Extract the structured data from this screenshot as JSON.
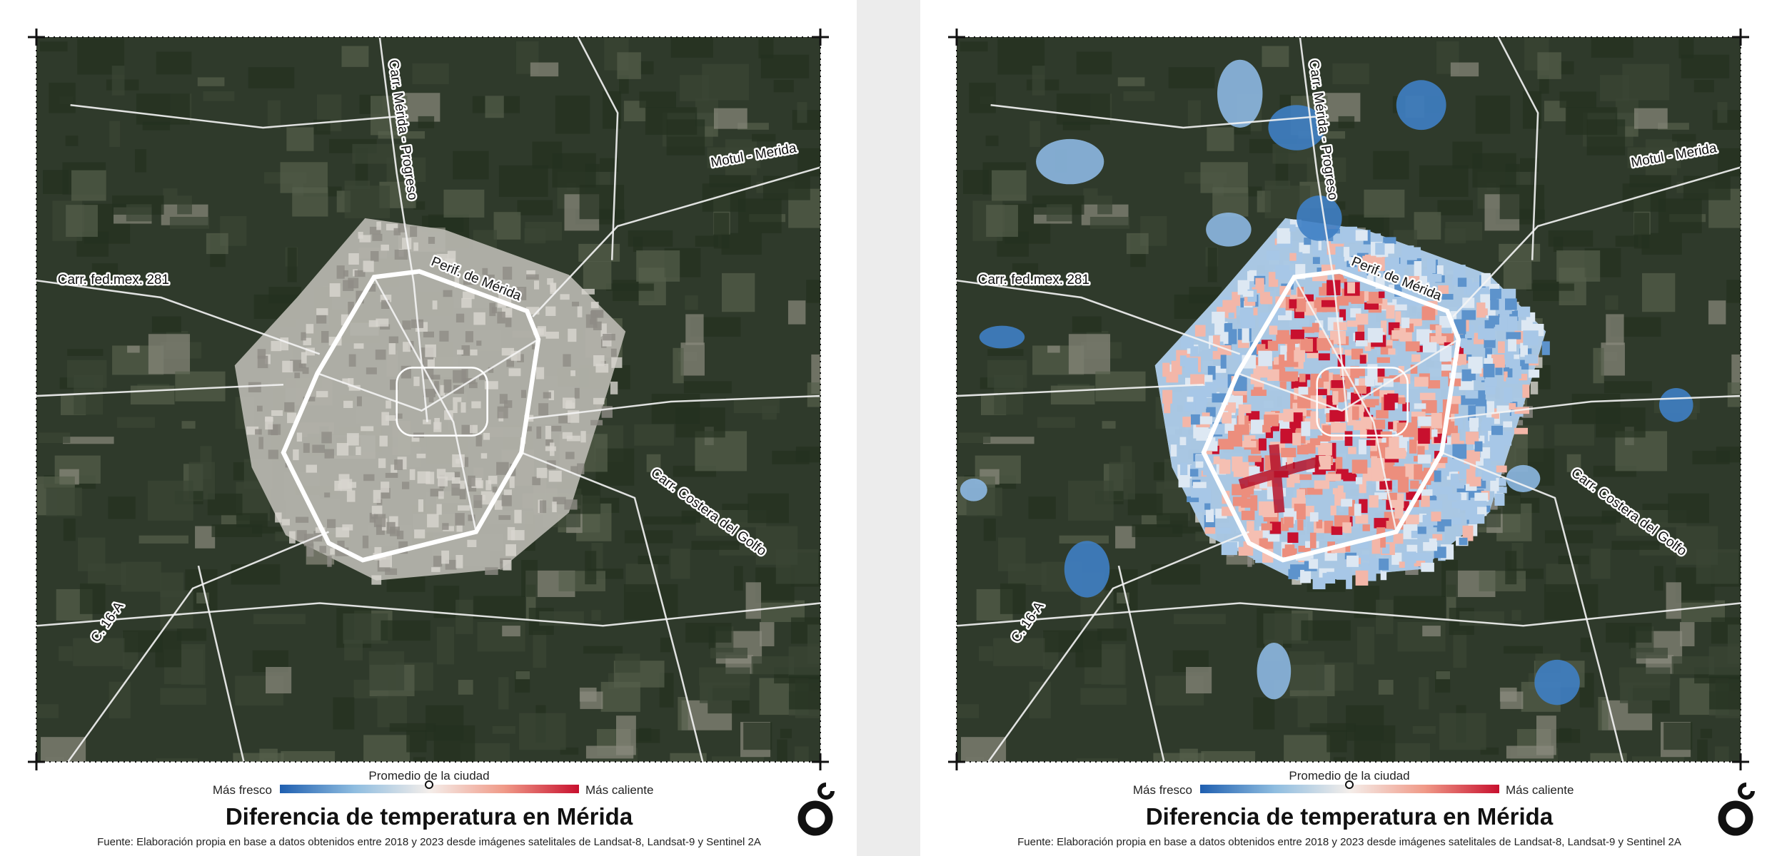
{
  "panels": [
    {
      "temperature_layer": false,
      "road_labels": [
        "Carr. Mérida - Progreso",
        "Motul - Merida",
        "Perif. de Mérida",
        "Carr. fed.mex. 281",
        "Carr. Costera del Golfo",
        "C. 16-A"
      ],
      "legend": {
        "low": "Más fresco",
        "mid": "Promedio de la ciudad",
        "high": "Más caliente"
      },
      "title": "Diferencia de temperatura en Mérida",
      "source": "Fuente: Elaboración propia en base a datos obtenidos entre 2018 y 2023 desde imágenes satelitales de Landsat-8, Landsat-9 y Sentinel 2A"
    },
    {
      "temperature_layer": true,
      "road_labels": [
        "Carr. Mérida - Progreso",
        "Motul - Merida",
        "Perif. de Mérida",
        "Carr. fed.mex. 281",
        "Carr. Costera del Golfo",
        "C. 16-A"
      ],
      "legend": {
        "low": "Más fresco",
        "mid": "Promedio de la ciudad",
        "high": "Más caliente"
      },
      "title": "Diferencia de temperatura en Mérida",
      "source": "Fuente: Elaboración propia en base a datos obtenidos entre 2018 y 2023 desde imágenes satelitales de Landsat-8, Landsat-9 y Sentinel 2A"
    }
  ]
}
